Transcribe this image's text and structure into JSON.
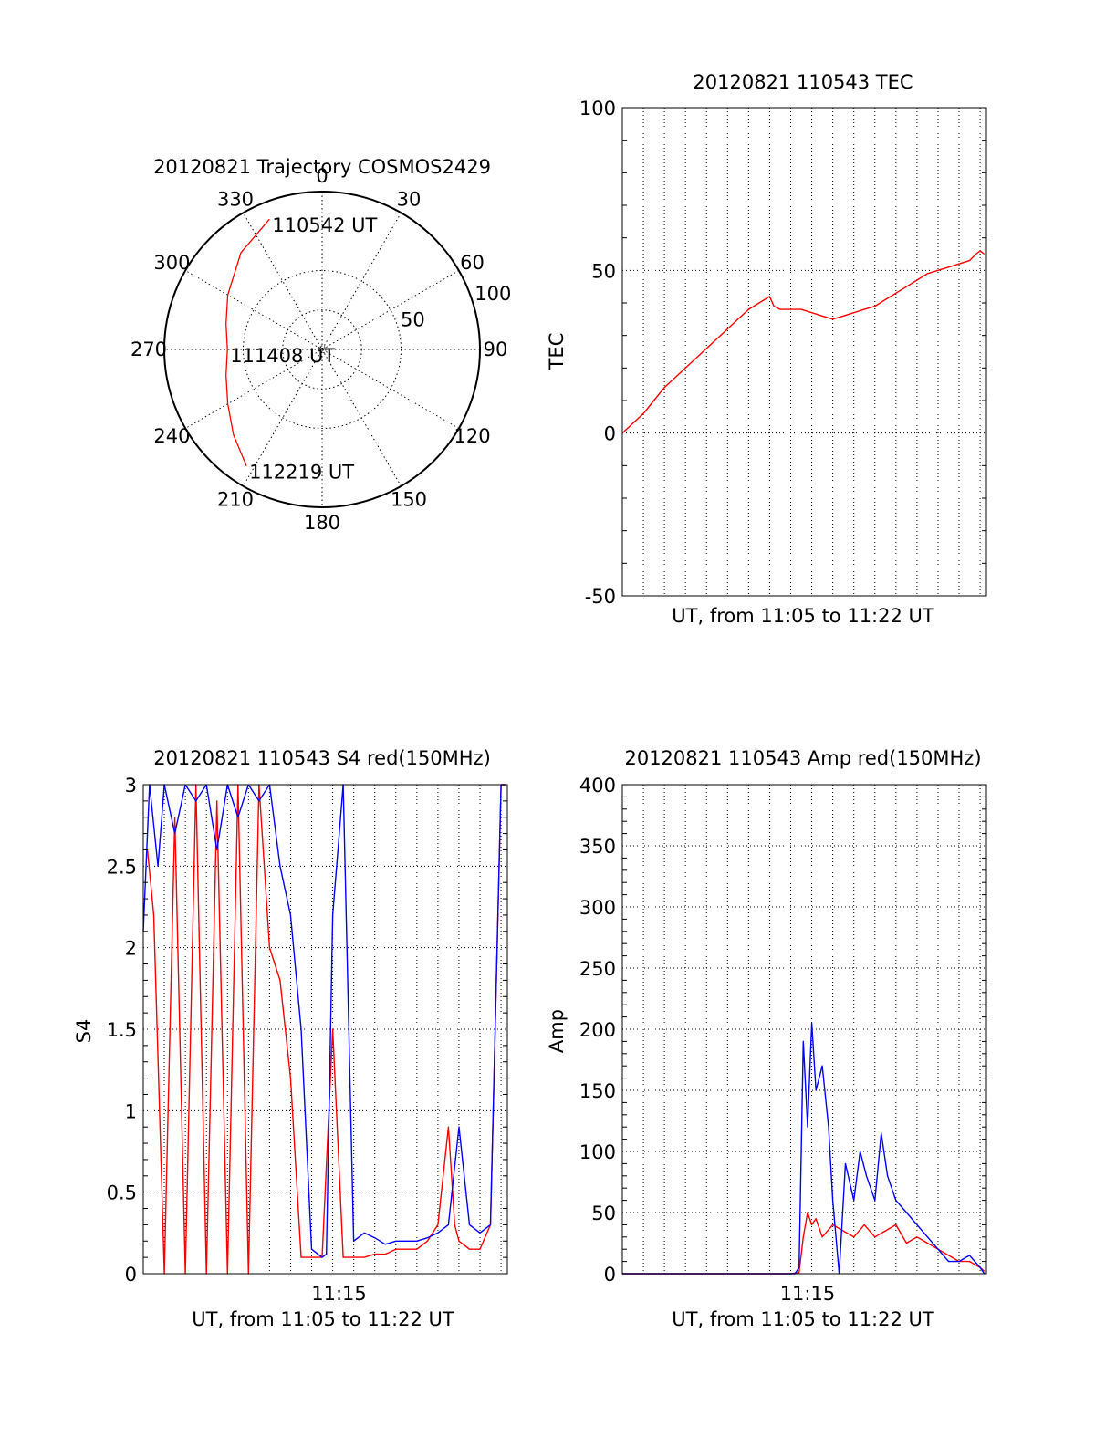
{
  "colors": {
    "red": "#ff0000",
    "blue": "#0000ff",
    "axis": "#000000"
  },
  "chart_data": [
    {
      "type": "polar",
      "title": "20120821 Trajectory COSMOS2429",
      "angle_labels": [
        "0",
        "30",
        "60",
        "90",
        "120",
        "150",
        "180",
        "210",
        "240",
        "270",
        "300",
        "330"
      ],
      "radial_ticks": [
        "50",
        "100"
      ],
      "radial_range": [
        0,
        100
      ],
      "grid": true,
      "annotations": [
        {
          "text": "110542 UT",
          "az": 338,
          "zen": 89
        },
        {
          "text": "111408 UT",
          "az": 270,
          "zen": 60
        },
        {
          "text": "112219 UT",
          "az": 213,
          "zen": 88
        }
      ],
      "series": [
        {
          "color": "#ff0000",
          "points": [
            [
              338,
              89
            ],
            [
              320,
              80
            ],
            [
              300,
              69
            ],
            [
              285,
              63
            ],
            [
              270,
              60
            ],
            [
              255,
              63
            ],
            [
              240,
              69
            ],
            [
              226,
              78
            ],
            [
              213,
              88
            ]
          ]
        }
      ]
    },
    {
      "type": "line",
      "title": "20120821 110543 TEC",
      "xlabel": "UT, from 11:05 to 11:22 UT",
      "ylabel": "TEC",
      "xlim": [
        0,
        17.3
      ],
      "ylim": [
        -50,
        100
      ],
      "yticks": [
        "-50",
        "0",
        "50",
        "100"
      ],
      "xticks": [],
      "grid": true,
      "series": [
        {
          "color": "#ff0000",
          "x": [
            0.0,
            0.5,
            1.0,
            1.5,
            2.0,
            2.5,
            3.0,
            3.5,
            4.0,
            4.5,
            5.0,
            5.5,
            6.0,
            6.5,
            7.0,
            7.2,
            7.5,
            8.0,
            8.5,
            9.0,
            9.5,
            10.0,
            10.5,
            11.0,
            11.5,
            12.0,
            12.5,
            13.0,
            13.5,
            14.0,
            14.5,
            15.0,
            15.5,
            16.0,
            16.5,
            16.8,
            17.0,
            17.2
          ],
          "y": [
            0,
            3,
            6,
            10,
            14,
            17,
            20,
            23,
            26,
            29,
            32,
            35,
            38,
            40,
            42,
            39,
            38,
            38,
            38,
            37,
            36,
            35,
            36,
            37,
            38,
            39,
            41,
            43,
            45,
            47,
            49,
            50,
            51,
            52,
            53,
            55,
            56,
            55
          ]
        }
      ]
    },
    {
      "type": "line",
      "title": "20120821 110543 S4 red(150MHz)",
      "xlabel": "UT, from 11:05 to 11:22 UT",
      "ylabel": "S4",
      "xlim": [
        0,
        17.3
      ],
      "ylim": [
        0,
        3
      ],
      "yticks": [
        "0",
        "0.5",
        "1",
        "1.5",
        "2",
        "2.5",
        "3"
      ],
      "xticks": [
        "11:15"
      ],
      "grid": true,
      "series": [
        {
          "color": "#ff0000",
          "x": [
            0.2,
            0.5,
            1.0,
            1.5,
            2.0,
            2.5,
            3.0,
            3.5,
            4.0,
            4.5,
            5.0,
            5.5,
            6.0,
            6.5,
            7.0,
            7.5,
            8.0,
            8.5,
            9.0,
            9.5,
            10.0,
            10.5,
            11.0,
            11.5,
            12.0,
            12.5,
            13.0,
            13.5,
            14.0,
            14.5,
            14.8,
            15.0,
            15.5,
            16.0,
            16.5,
            17.0,
            17.2
          ],
          "y": [
            2.6,
            2.2,
            0.0,
            2.8,
            0.0,
            3.0,
            0.0,
            2.9,
            0.0,
            3.0,
            0.0,
            3.0,
            2.0,
            1.8,
            1.2,
            0.1,
            0.1,
            0.1,
            1.5,
            0.1,
            0.1,
            0.1,
            0.12,
            0.12,
            0.15,
            0.15,
            0.15,
            0.2,
            0.3,
            0.9,
            0.3,
            0.2,
            0.15,
            0.15,
            0.3,
            3.0,
            3.0
          ]
        },
        {
          "color": "#0000ff",
          "x": [
            0.0,
            0.3,
            0.7,
            1.0,
            1.5,
            2.0,
            2.5,
            3.0,
            3.5,
            4.0,
            4.5,
            5.0,
            5.5,
            6.0,
            6.5,
            7.0,
            7.5,
            8.0,
            8.5,
            8.7,
            9.0,
            9.5,
            10.0,
            10.5,
            11.0,
            11.5,
            12.0,
            12.5,
            13.0,
            13.5,
            14.0,
            14.5,
            15.0,
            15.5,
            16.0,
            16.5,
            17.0,
            17.2
          ],
          "y": [
            2.1,
            3.0,
            2.5,
            3.0,
            2.7,
            3.0,
            2.9,
            3.0,
            2.6,
            3.0,
            2.8,
            3.0,
            2.9,
            3.0,
            2.5,
            2.2,
            1.5,
            0.15,
            0.1,
            0.12,
            2.2,
            3.0,
            0.2,
            0.25,
            0.22,
            0.18,
            0.2,
            0.2,
            0.2,
            0.22,
            0.25,
            0.3,
            0.9,
            0.3,
            0.25,
            0.3,
            3.0,
            3.0
          ]
        }
      ]
    },
    {
      "type": "line",
      "title": "20120821 110543 Amp red(150MHz)",
      "xlabel": "UT, from 11:05 to 11:22 UT",
      "ylabel": "Amp",
      "xlim": [
        0,
        17.3
      ],
      "ylim": [
        0,
        400
      ],
      "yticks": [
        "0",
        "50",
        "100",
        "150",
        "200",
        "250",
        "300",
        "350",
        "400"
      ],
      "xticks": [
        "11:15"
      ],
      "grid": true,
      "series": [
        {
          "color": "#ff0000",
          "x": [
            0.0,
            8.0,
            8.4,
            8.6,
            8.8,
            9.0,
            9.2,
            9.5,
            10.0,
            10.5,
            11.0,
            11.5,
            12.0,
            12.5,
            13.0,
            13.5,
            14.0,
            14.5,
            15.0,
            15.5,
            16.0,
            16.5,
            17.0,
            17.2
          ],
          "y": [
            0,
            0,
            1,
            30,
            50,
            40,
            45,
            30,
            40,
            35,
            30,
            40,
            30,
            35,
            40,
            25,
            30,
            25,
            20,
            15,
            10,
            10,
            5,
            2
          ]
        },
        {
          "color": "#0000ff",
          "x": [
            0.0,
            8.2,
            8.4,
            8.6,
            8.8,
            9.0,
            9.2,
            9.5,
            9.8,
            10.0,
            10.3,
            10.6,
            11.0,
            11.3,
            11.6,
            12.0,
            12.3,
            12.6,
            13.0,
            13.5,
            14.0,
            14.5,
            15.0,
            15.5,
            16.0,
            16.5,
            17.0,
            17.2
          ],
          "y": [
            0,
            0,
            5,
            190,
            120,
            205,
            150,
            170,
            120,
            60,
            0,
            90,
            60,
            100,
            80,
            60,
            115,
            80,
            60,
            50,
            40,
            30,
            20,
            10,
            10,
            15,
            5,
            0
          ]
        }
      ]
    }
  ]
}
